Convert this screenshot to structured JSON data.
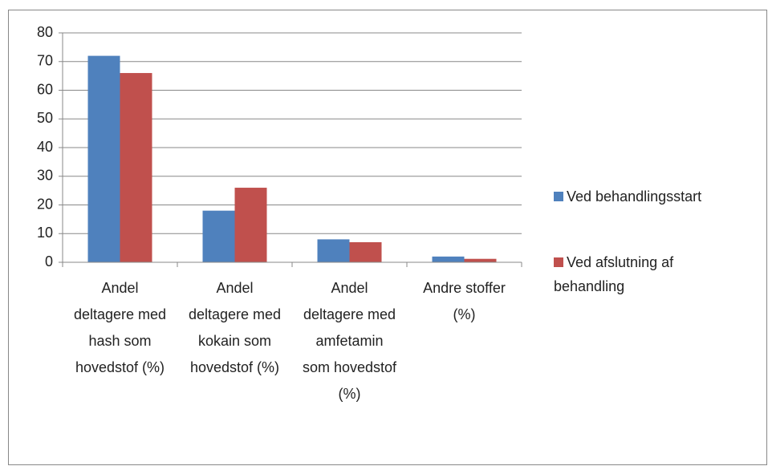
{
  "chart_data": {
    "type": "bar",
    "categories": [
      "Andel deltagere med hash som hovedstof (%)",
      "Andel deltagere med kokain som hovedstof (%)",
      "Andel deltagere med amfetamin som hovedstof (%)",
      "Andre stoffer (%)"
    ],
    "series": [
      {
        "name": "Ved behandlingsstart",
        "color": "#4f81bd",
        "values": [
          72,
          18,
          8,
          2
        ]
      },
      {
        "name": "Ved afslutning af behandling",
        "color": "#c0504d",
        "values": [
          66,
          26,
          7,
          1.2
        ]
      }
    ],
    "ylim": [
      0,
      80
    ],
    "yticks": [
      0,
      10,
      20,
      30,
      40,
      50,
      60,
      70,
      80
    ],
    "grid": true,
    "legend": "right"
  }
}
